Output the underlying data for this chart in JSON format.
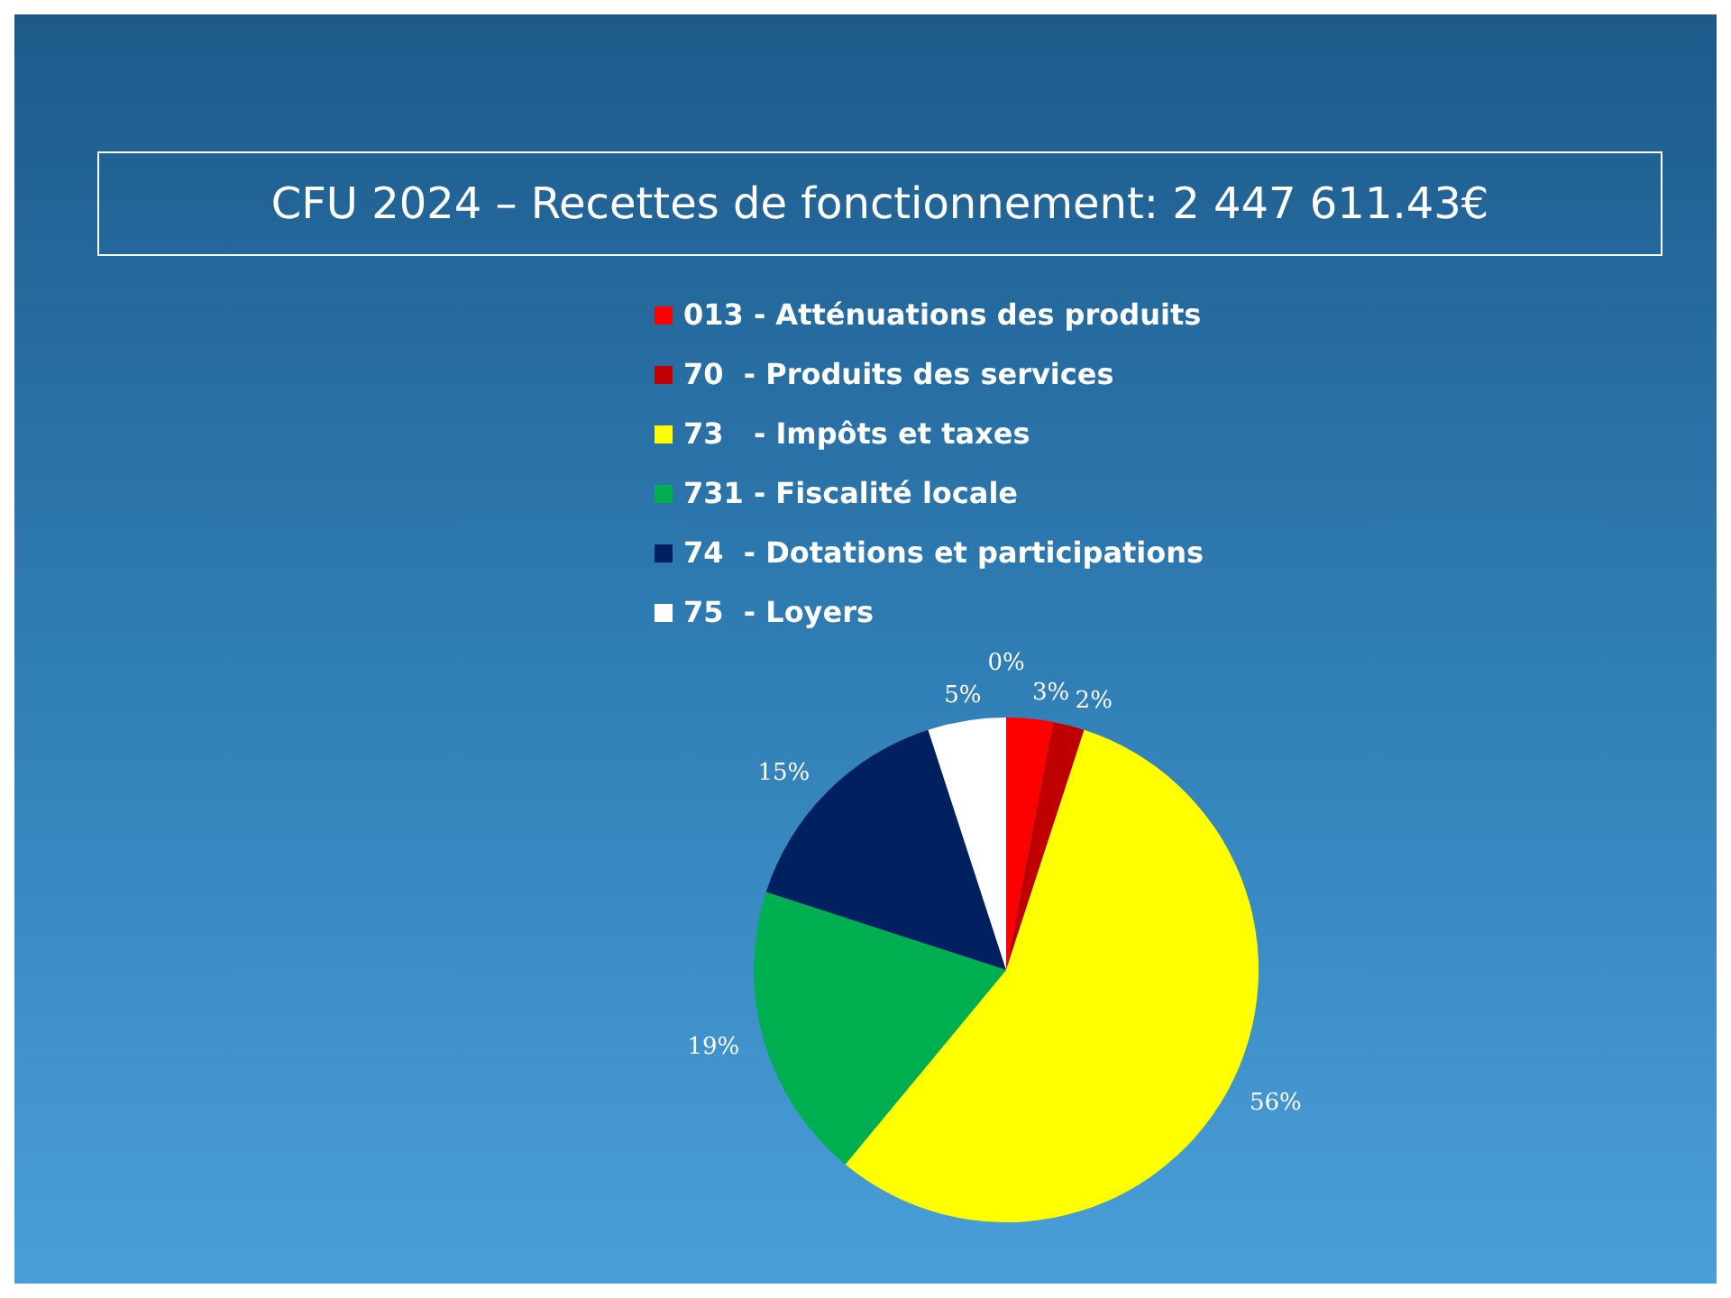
{
  "chart_data": {
    "type": "pie",
    "title": "CFU 2024 – Recettes de fonctionnement: 2 447 611.43€",
    "categories": [
      "013 - Atténuations des produits",
      "70  - Produits des services",
      "73   - Impôts et taxes",
      "731 - Fiscalité locale",
      "74  - Dotations et participations",
      "75  - Loyers",
      null
    ],
    "values": [
      3,
      2,
      56,
      19,
      15,
      5,
      0
    ],
    "value_labels": [
      "3%",
      "2%",
      "56%",
      "19%",
      "15%",
      "5%",
      "0%"
    ],
    "colors": [
      "#ff0000",
      "#c00000",
      "#ffff00",
      "#00b050",
      "#002060",
      "#ffffff",
      "#5b9bd5"
    ],
    "legend": "top"
  }
}
